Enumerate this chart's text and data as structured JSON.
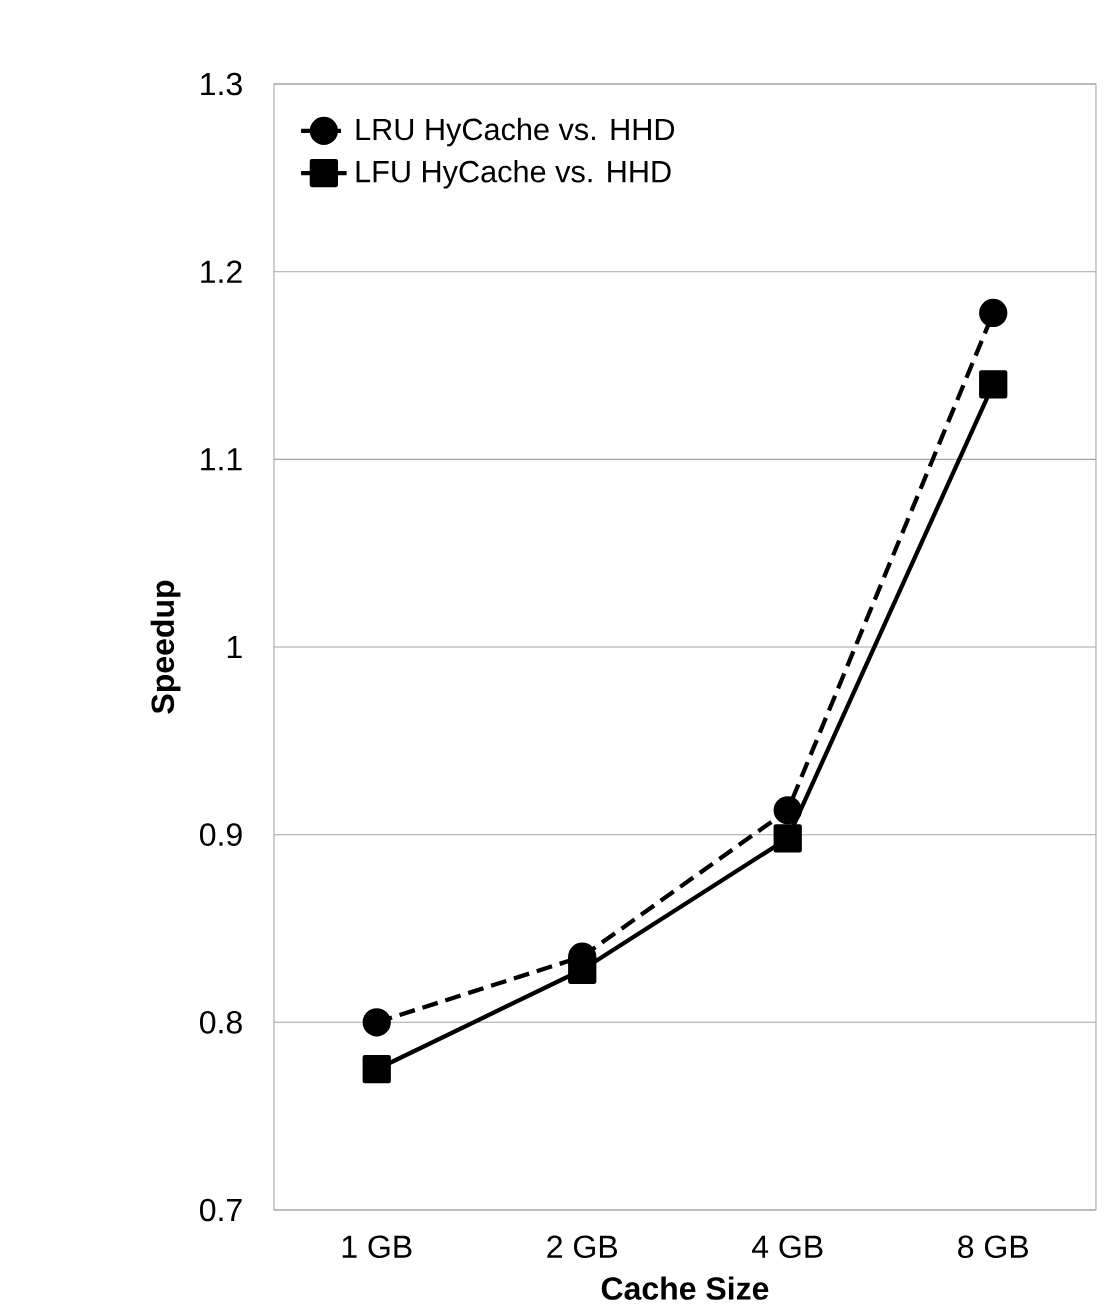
{
  "chart_data": {
    "type": "line",
    "xlabel": "Cache Size",
    "ylabel": "Speedup",
    "categories": [
      "1 GB",
      "2 GB",
      "4 GB",
      "8 GB"
    ],
    "series": [
      {
        "name": "LRU HyCache vs. HHD",
        "color": "#000000",
        "marker": "circle",
        "line_style": "dashed",
        "values": [
          0.8,
          0.835,
          0.913,
          1.178
        ]
      },
      {
        "name": "LFU HyCache vs. HHD",
        "color": "#000000",
        "marker": "square",
        "line_style": "solid",
        "values": [
          0.775,
          0.828,
          0.898,
          1.14
        ]
      }
    ],
    "ylim": [
      0.7,
      1.3
    ],
    "yticks": [
      0.7,
      0.8,
      0.9,
      1,
      1.1,
      1.2,
      1.3
    ],
    "grid": "y",
    "legend": "top left"
  }
}
